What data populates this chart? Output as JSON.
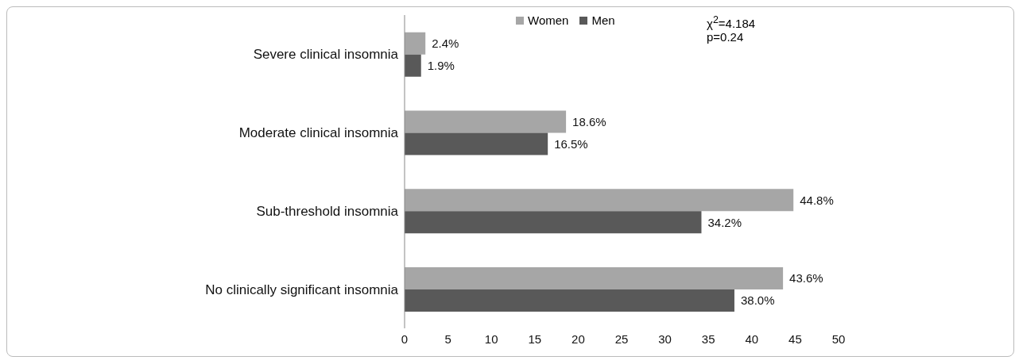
{
  "chart_data": {
    "type": "bar",
    "orientation": "horizontal",
    "categories": [
      "Severe clinical insomnia",
      "Moderate clinical insomnia",
      "Sub-threshold insomnia",
      "No clinically significant insomnia"
    ],
    "series": [
      {
        "name": "Women",
        "color": "#a6a6a6",
        "values": [
          2.4,
          18.6,
          44.8,
          43.6
        ],
        "value_labels": [
          "2.4%",
          "18.6%",
          "44.8%",
          "43.6%"
        ]
      },
      {
        "name": "Men",
        "color": "#595959",
        "values": [
          1.9,
          16.5,
          34.2,
          38.0
        ],
        "value_labels": [
          "1.9%",
          "16.5%",
          "34.2%",
          "38.0%"
        ]
      }
    ],
    "xlim": [
      0,
      50
    ],
    "xticks": [
      0,
      5,
      10,
      15,
      20,
      25,
      30,
      35,
      40,
      45,
      50
    ],
    "legend": "top",
    "annotations": [
      "χ$^{2}$=4.184",
      "p=0.24"
    ]
  }
}
